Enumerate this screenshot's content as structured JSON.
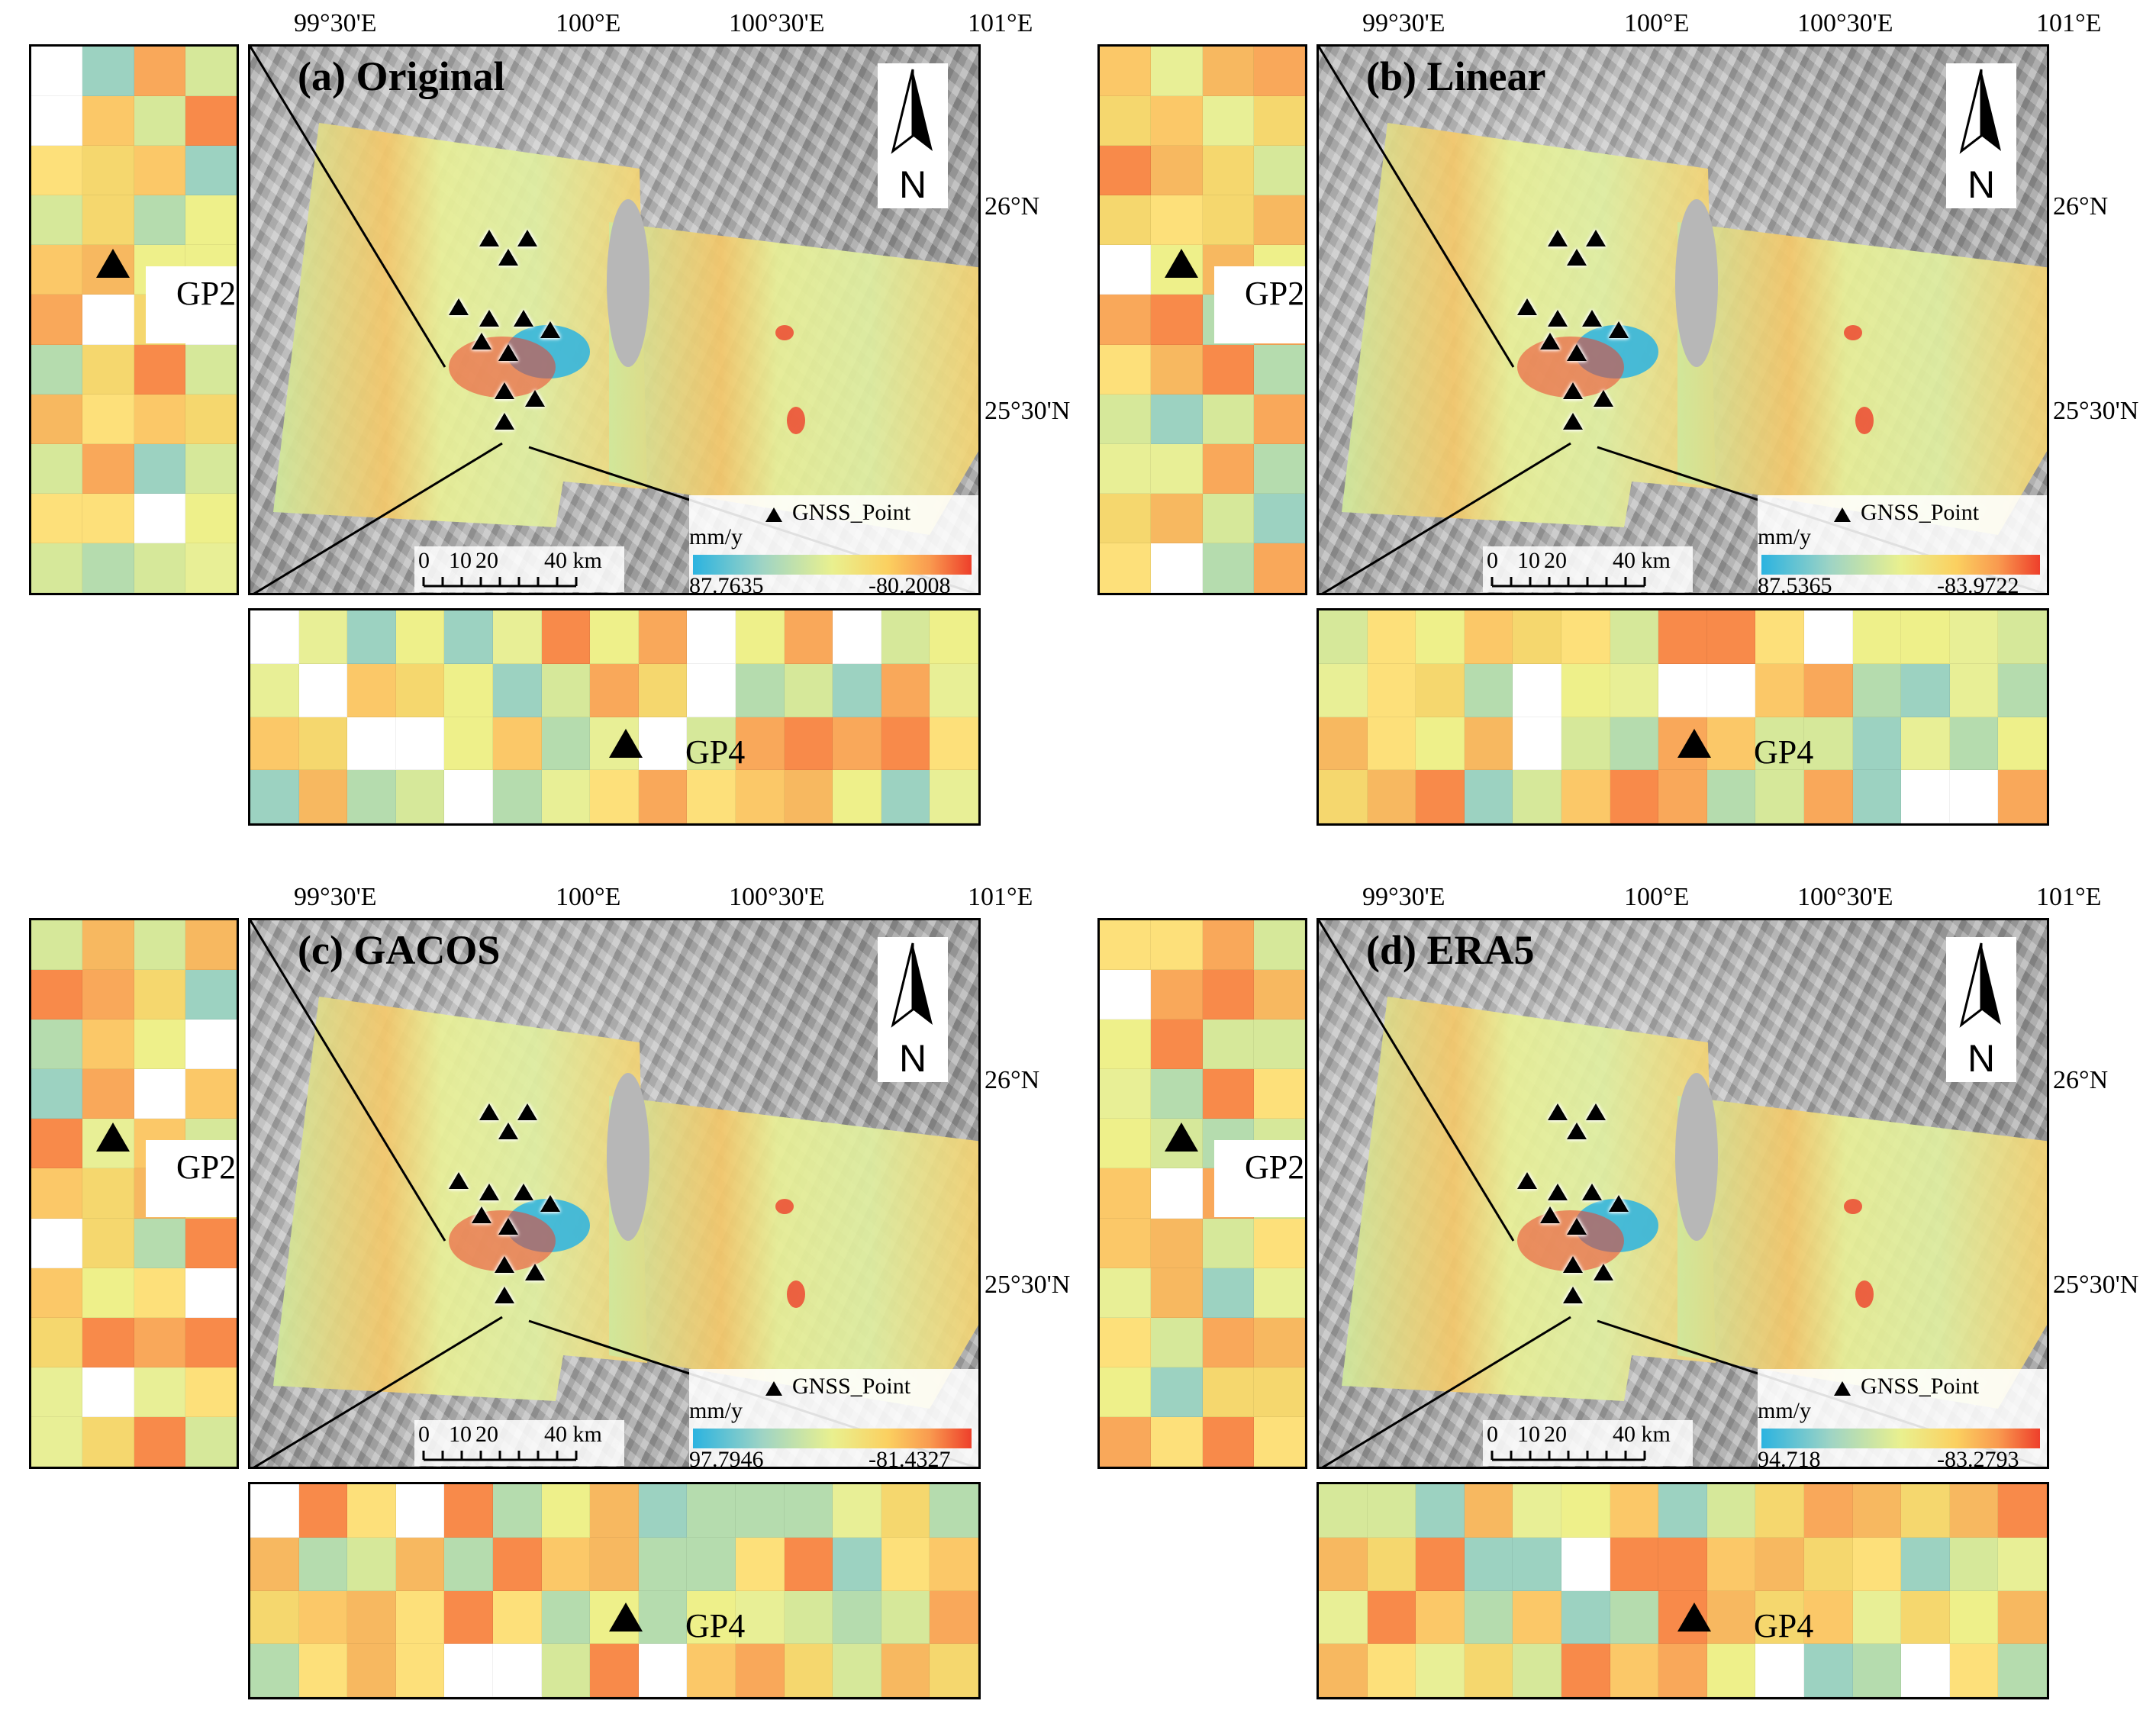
{
  "axis_ticks": {
    "lon": [
      "99°30'E",
      "100°E",
      "100°30'E",
      "101°E"
    ],
    "lat": [
      "26°N",
      "25°30'N"
    ]
  },
  "colors": {
    "low": "#2bb3e0",
    "mid": "#e9f08f",
    "high": "#ee3f2b"
  },
  "panels": [
    {
      "title": "(a) Original",
      "legend_unit": "mm/y",
      "legend_min": "87.7635",
      "legend_max": "-80.2008",
      "legend_item": "GNSS_Point",
      "scale_ticks": [
        "0",
        "10",
        "20",
        "40 km"
      ],
      "north": "N",
      "gp_v": "GP2",
      "gp_h": "GP4"
    },
    {
      "title": "(b) Linear",
      "legend_unit": "mm/y",
      "legend_min": "87.5365",
      "legend_max": "-83.9722",
      "legend_item": "GNSS_Point",
      "scale_ticks": [
        "0",
        "10",
        "20",
        "40 km"
      ],
      "north": "N",
      "gp_v": "GP2",
      "gp_h": "GP4"
    },
    {
      "title": "(c) GACOS",
      "legend_unit": "mm/y",
      "legend_min": "97.7946",
      "legend_max": "-81.4327",
      "legend_item": "GNSS_Point",
      "scale_ticks": [
        "0",
        "10",
        "20",
        "40 km"
      ],
      "north": "N",
      "gp_v": "GP2",
      "gp_h": "GP4"
    },
    {
      "title": "(d) ERA5",
      "legend_unit": "mm/y",
      "legend_min": "94.718",
      "legend_max": "-83.2793",
      "legend_item": "GNSS_Point",
      "scale_ticks": [
        "0",
        "10",
        "20",
        "40 km"
      ],
      "north": "N",
      "gp_v": "GP2",
      "gp_h": "GP4"
    }
  ]
}
